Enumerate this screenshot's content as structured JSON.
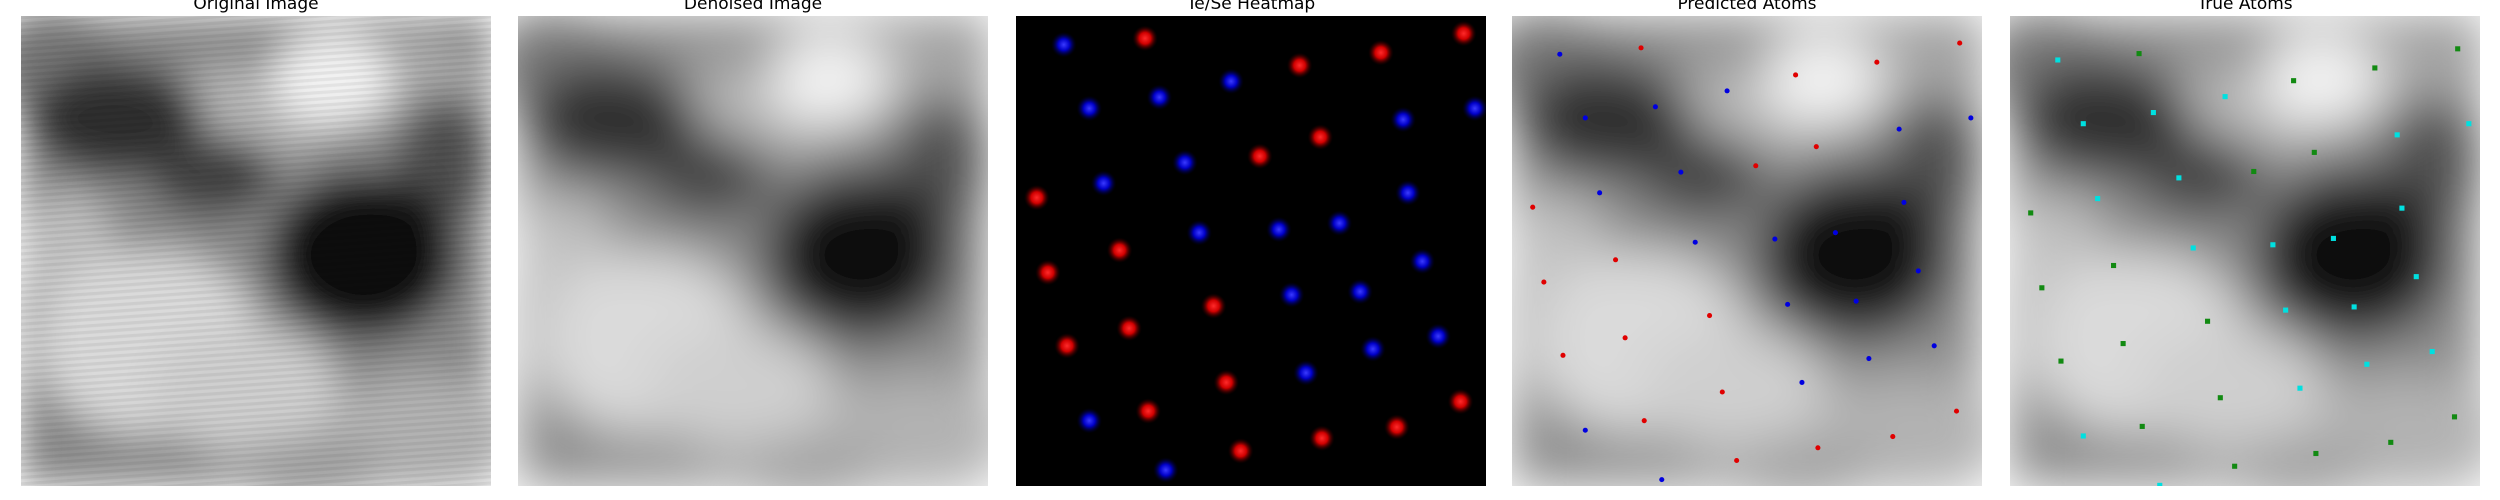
{
  "panels": [
    {
      "title": "Original Image"
    },
    {
      "title": "Denoised Image"
    },
    {
      "title": "Te/Se Heatmap"
    },
    {
      "title": "Predicted Atoms"
    },
    {
      "title": "True Atoms"
    }
  ]
}
